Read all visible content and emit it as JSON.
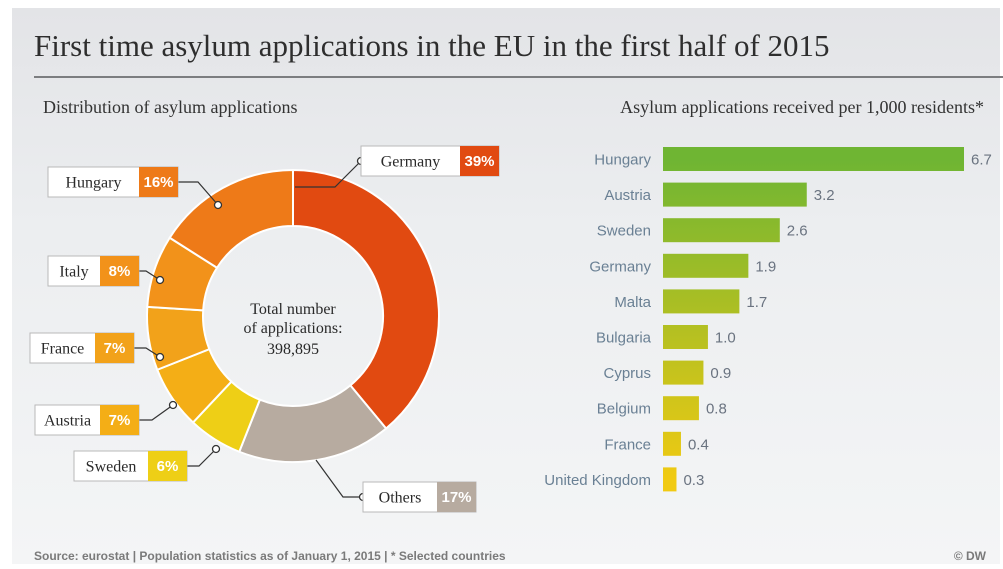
{
  "title": "First time asylum applications in the EU in the first half of 2015",
  "source": "Source: eurostat | Population statistics as of January 1, 2015 | * Selected countries",
  "credit": "© DW",
  "colors": {
    "Germany": "#e14a11",
    "Hungary": "#ee7a18",
    "Italy": "#f2921a",
    "France": "#f2a21a",
    "Austria": "#f4ae16",
    "Sweden": "#eecf16",
    "Others": "#b7aba0",
    "bar_start": "#6fb533",
    "bar_end": "#f1ca12"
  },
  "chart_data": [
    {
      "type": "pie",
      "title": "Distribution of asylum applications",
      "center_text": [
        "Total number",
        "of applications:",
        "398,895"
      ],
      "slices": [
        {
          "label": "Germany",
          "value": 39,
          "display": "39%"
        },
        {
          "label": "Others",
          "value": 17,
          "display": "17%"
        },
        {
          "label": "Sweden",
          "value": 6,
          "display": "6%"
        },
        {
          "label": "Austria",
          "value": 7,
          "display": "7%"
        },
        {
          "label": "France",
          "value": 7,
          "display": "7%"
        },
        {
          "label": "Italy",
          "value": 8,
          "display": "8%"
        },
        {
          "label": "Hungary",
          "value": 16,
          "display": "16%"
        }
      ]
    },
    {
      "type": "bar",
      "orientation": "horizontal",
      "title": "Asylum applications received per 1,000 residents*",
      "categories": [
        "Hungary",
        "Austria",
        "Sweden",
        "Germany",
        "Malta",
        "Bulgaria",
        "Cyprus",
        "Belgium",
        "France",
        "United Kingdom"
      ],
      "values": [
        6.7,
        3.2,
        2.6,
        1.9,
        1.7,
        1.0,
        0.9,
        0.8,
        0.4,
        0.3
      ],
      "value_labels": [
        "6.7",
        "3.2",
        "2.6",
        "1.9",
        "1.7",
        "1.0",
        "0.9",
        "0.8",
        "0.4",
        "0.3"
      ],
      "xlim": [
        0,
        6.7
      ]
    }
  ]
}
